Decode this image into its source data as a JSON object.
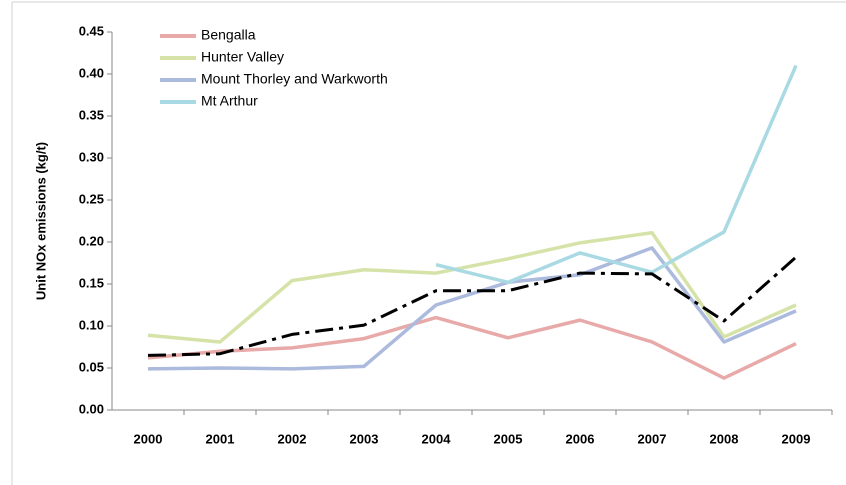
{
  "chart_data": {
    "type": "line",
    "y_label": "Unit NOx emissions (kg/t)",
    "categories": [
      "2000",
      "2001",
      "2002",
      "2003",
      "2004",
      "2005",
      "2006",
      "2007",
      "2008",
      "2009"
    ],
    "series": [
      {
        "name": "Bengalla",
        "color": "#e8a9a9",
        "values": [
          0.062,
          0.07,
          0.074,
          0.085,
          0.11,
          0.086,
          0.107,
          0.081,
          0.038,
          0.079
        ]
      },
      {
        "name": "Hunter Valley",
        "color": "#d5e3a8",
        "values": [
          0.089,
          0.081,
          0.154,
          0.167,
          0.163,
          0.18,
          0.199,
          0.211,
          0.087,
          0.125
        ]
      },
      {
        "name": "Mount Thorley and Warkworth",
        "color": "#abbadd",
        "values": [
          0.049,
          0.05,
          0.049,
          0.052,
          0.125,
          0.152,
          0.161,
          0.193,
          0.081,
          0.118
        ]
      },
      {
        "name": "Mt Arthur",
        "color": "#a9d9e3",
        "values": [
          null,
          null,
          null,
          null,
          0.173,
          0.152,
          0.187,
          0.164,
          0.212,
          0.41
        ]
      },
      {
        "color": "#000000",
        "dash": "dash-dot",
        "values": [
          0.065,
          0.067,
          0.09,
          0.101,
          0.142,
          0.142,
          0.163,
          0.162,
          0.106,
          0.182
        ]
      }
    ],
    "ylim": [
      0,
      0.45
    ],
    "yticks": [
      {
        "value": 0,
        "label": "0.00"
      },
      {
        "value": 0.05,
        "label": "0.05"
      },
      {
        "value": 0.1,
        "label": "0.10"
      },
      {
        "value": 0.15,
        "label": "0.15"
      },
      {
        "value": 0.2,
        "label": "0.20"
      },
      {
        "value": 0.25,
        "label": "0.25"
      },
      {
        "value": 0.3,
        "label": "0.30"
      },
      {
        "value": 0.35,
        "label": "0.35"
      },
      {
        "value": 0.4,
        "label": "0.40"
      },
      {
        "value": 0.45,
        "label": "0.45"
      }
    ],
    "legend": "top-left"
  }
}
